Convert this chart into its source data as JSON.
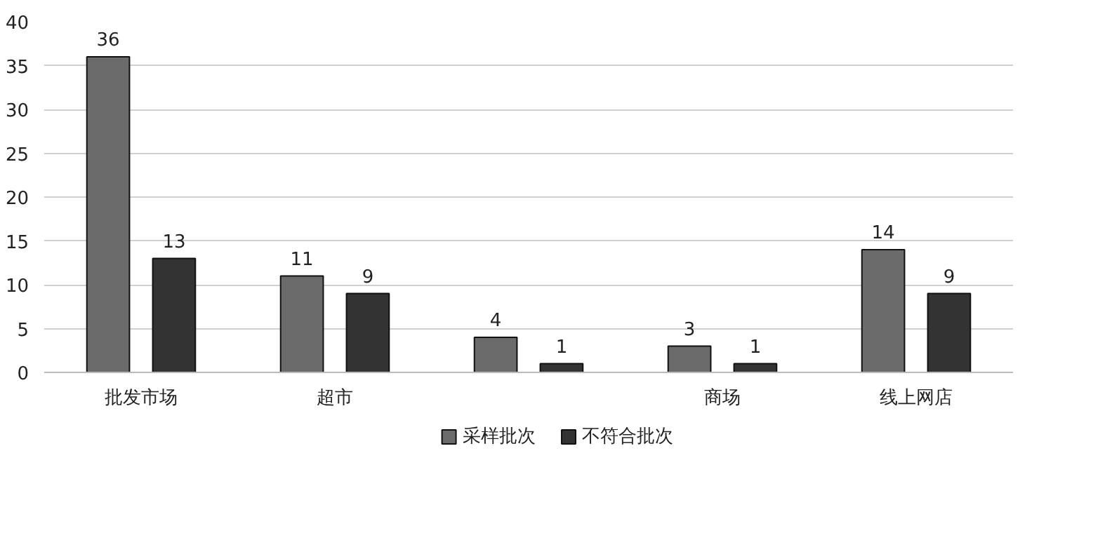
{
  "chart_data": {
    "type": "bar",
    "categories": [
      "批发市场",
      "超市",
      null,
      "商场",
      "线上网店"
    ],
    "series": [
      {
        "name": "采样批次",
        "color": "#6b6b6b",
        "values": [
          36,
          11,
          4,
          3,
          14
        ]
      },
      {
        "name": "不符合批次",
        "color": "#333333",
        "values": [
          13,
          9,
          1,
          1,
          9
        ]
      }
    ],
    "ylim": [
      0,
      40
    ],
    "yticks": [
      0,
      5,
      10,
      15,
      20,
      25,
      30,
      35,
      40
    ],
    "grid": "y",
    "legend": "bottom",
    "data_labels": true
  }
}
